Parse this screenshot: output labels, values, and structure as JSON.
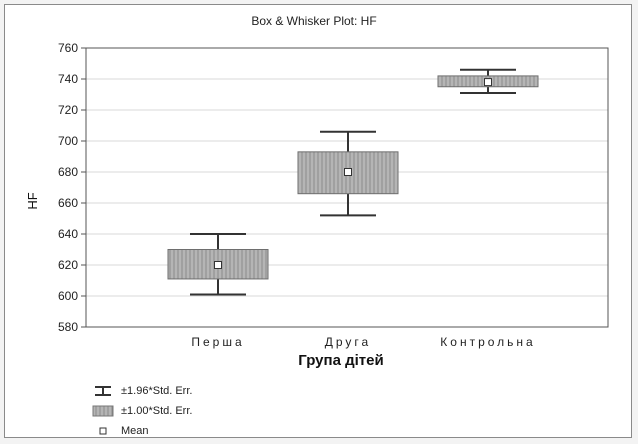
{
  "chart_data": {
    "type": "box",
    "title": "Box & Whisker Plot: HF",
    "xlabel": "Група дітей",
    "ylabel": "HF",
    "ylim": [
      580,
      760
    ],
    "yticks": [
      580,
      600,
      620,
      640,
      660,
      680,
      700,
      720,
      740,
      760
    ],
    "grid": true,
    "categories": [
      "Перша",
      "Друга",
      "Контрольна"
    ],
    "series": [
      {
        "category": "Перша",
        "mean": 620,
        "box_low": 611,
        "box_high": 630,
        "whisker_low": 601,
        "whisker_high": 640
      },
      {
        "category": "Друга",
        "mean": 680,
        "box_low": 666,
        "box_high": 693,
        "whisker_low": 652,
        "whisker_high": 706
      },
      {
        "category": "Контрольна",
        "mean": 738,
        "box_low": 735,
        "box_high": 742,
        "whisker_low": 731,
        "whisker_high": 746
      }
    ],
    "legend": [
      {
        "symbol": "whisker",
        "label": "±1.96*Std. Err."
      },
      {
        "symbol": "box",
        "label": "±1.00*Std. Err."
      },
      {
        "symbol": "mean",
        "label": "Mean"
      }
    ],
    "colors": {
      "box_fill": "#a9a9a9",
      "box_hatch": "#8a8a8a",
      "whisker": "#333333",
      "grid": "#d8d8d8",
      "mean_fill": "#ffffff"
    }
  }
}
